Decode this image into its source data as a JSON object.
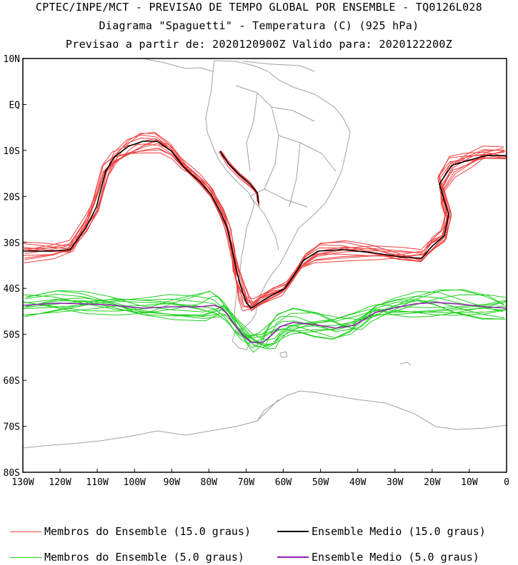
{
  "header": {
    "title1": "CPTEC/INPE/MCT - PREVISAO DE TEMPO GLOBAL POR ENSEMBLE - TQ0126L028",
    "title2": "Diagrama \"Spaguetti\" - Temperatura (C) (925 hPa)",
    "title3": "Previsao a partir de: 2020120900Z  Valido para: 2020122200Z"
  },
  "colors": {
    "members_15": "#f04040",
    "mean_15": "#000000",
    "members_5": "#20d020",
    "mean_5": "#9020b0",
    "coast": "#a0a0a0"
  },
  "map": {
    "lat_labels": [
      "10N",
      "EQ",
      "10S",
      "20S",
      "30S",
      "40S",
      "50S",
      "60S",
      "70S",
      "80S"
    ],
    "lon_labels": [
      "130W",
      "120W",
      "110W",
      "100W",
      "90W",
      "80W",
      "70W",
      "60W",
      "50W",
      "40W",
      "30W",
      "20W",
      "10W",
      "0"
    ],
    "lat_range": [
      -80,
      10
    ],
    "lon_range": [
      -130,
      0
    ]
  },
  "legend": {
    "members_15_label": "Membros do Ensemble (15.0 graus)",
    "mean_15_label": "Ensemble Medio (15.0 graus)",
    "members_5_label": "Membros do Ensemble (5.0 graus)",
    "mean_5_label": "Ensemble Medio (5.0 graus)"
  }
}
